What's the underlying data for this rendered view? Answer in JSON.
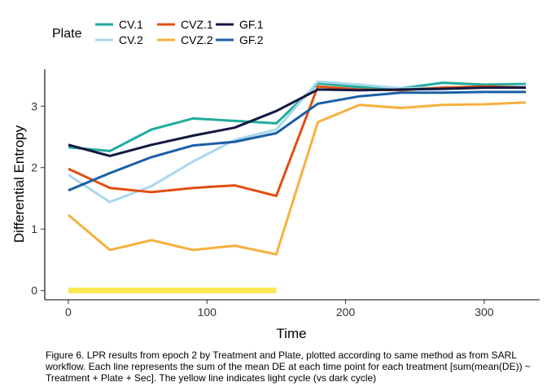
{
  "chart_data": {
    "type": "line",
    "xlabel": "Time",
    "ylabel": "Differential Entropy",
    "xlim": [
      -17,
      340
    ],
    "ylim": [
      -0.15,
      3.6
    ],
    "x_ticks": [
      0,
      100,
      200,
      300
    ],
    "y_ticks": [
      0,
      1,
      2,
      3
    ],
    "grid": false,
    "legend": {
      "title": "Plate",
      "position": "top-left"
    },
    "series": [
      {
        "name": "CV.1",
        "color": "#21ab9b",
        "x": [
          0,
          30,
          60,
          90,
          120,
          150,
          180,
          210,
          240,
          270,
          300,
          330
        ],
        "y": [
          2.33,
          2.27,
          2.62,
          2.8,
          2.76,
          2.72,
          3.37,
          3.31,
          3.29,
          3.38,
          3.35,
          3.36
        ]
      },
      {
        "name": "CV.2",
        "color": "#a8d8ea",
        "x": [
          0,
          30,
          60,
          90,
          120,
          150,
          180,
          210,
          240,
          270,
          300,
          330
        ],
        "y": [
          1.88,
          1.44,
          1.7,
          2.1,
          2.45,
          2.62,
          3.4,
          3.35,
          3.29,
          3.3,
          3.31,
          3.33
        ]
      },
      {
        "name": "CVZ.1",
        "color": "#e24e12",
        "x": [
          0,
          30,
          60,
          90,
          120,
          150,
          180,
          210,
          240,
          270,
          300,
          330
        ],
        "y": [
          1.98,
          1.67,
          1.6,
          1.67,
          1.71,
          1.54,
          3.32,
          3.27,
          3.26,
          3.3,
          3.32,
          3.3
        ]
      },
      {
        "name": "CVZ.2",
        "color": "#f7b03f",
        "x": [
          0,
          30,
          60,
          90,
          120,
          150,
          180,
          210,
          240,
          270,
          300,
          330
        ],
        "y": [
          1.23,
          0.66,
          0.82,
          0.66,
          0.73,
          0.59,
          2.74,
          3.02,
          2.97,
          3.02,
          3.03,
          3.06
        ]
      },
      {
        "name": "GF.1",
        "color": "#121840",
        "x": [
          0,
          30,
          60,
          90,
          120,
          150,
          180,
          210,
          240,
          270,
          300,
          330
        ],
        "y": [
          2.37,
          2.19,
          2.37,
          2.52,
          2.65,
          2.92,
          3.27,
          3.26,
          3.27,
          3.28,
          3.3,
          3.3
        ]
      },
      {
        "name": "GF.2",
        "color": "#1a5fa5",
        "x": [
          0,
          30,
          60,
          90,
          120,
          150,
          180,
          210,
          240,
          270,
          300,
          330
        ],
        "y": [
          1.63,
          1.91,
          2.17,
          2.36,
          2.42,
          2.56,
          3.04,
          3.16,
          3.22,
          3.22,
          3.23,
          3.23
        ]
      }
    ],
    "light_cycle": {
      "color": "#f9e84f",
      "x": [
        0,
        150
      ],
      "y": 0
    }
  },
  "caption": "Figure 6. LPR results from epoch 2 by Treatment and Plate, plotted according to same method as from SARL workflow. Each line represents the sum of the mean DE at each time point for each treatment [sum(mean(DE)) ~ Treatment + Plate + Sec]. The yellow line indicates light cycle (vs dark cycle)"
}
